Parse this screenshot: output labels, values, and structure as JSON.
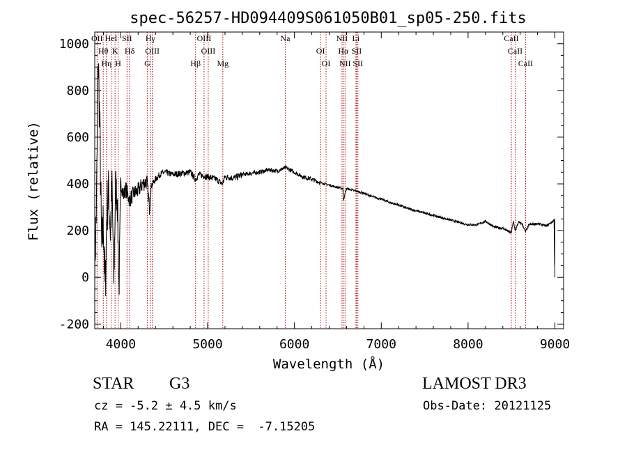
{
  "chart_data": {
    "type": "line",
    "title": "spec-56257-HD094409S061050B01_sp05-250.fits",
    "xlabel": "Wavelength (Å)",
    "ylabel": "Flux (relative)",
    "xlim": [
      3700,
      9100
    ],
    "ylim": [
      -220,
      1050
    ],
    "xticks": [
      4000,
      5000,
      6000,
      7000,
      8000,
      9000
    ],
    "yticks": [
      -200,
      0,
      200,
      400,
      600,
      800,
      1000
    ],
    "line_color": "#000000",
    "marker_color": "#b00000",
    "series": [
      {
        "name": "flux",
        "x": [
          3700,
          3720,
          3740,
          3760,
          3780,
          3800,
          3820,
          3840,
          3860,
          3880,
          3900,
          3920,
          3940,
          3960,
          3980,
          4000,
          4030,
          4060,
          4100,
          4150,
          4200,
          4250,
          4300,
          4330,
          4350,
          4400,
          4450,
          4500,
          4600,
          4700,
          4800,
          4860,
          4900,
          5000,
          5100,
          5170,
          5200,
          5300,
          5400,
          5500,
          5600,
          5700,
          5800,
          5900,
          6000,
          6100,
          6200,
          6300,
          6400,
          6500,
          6560,
          6563,
          6600,
          6700,
          6800,
          6900,
          7000,
          7100,
          7200,
          7300,
          7400,
          7500,
          7600,
          7700,
          7800,
          7900,
          8000,
          8100,
          8200,
          8300,
          8400,
          8498,
          8520,
          8542,
          8580,
          8620,
          8662,
          8700,
          8800,
          8900,
          8980,
          8990,
          9000
        ],
        "y": [
          50,
          300,
          950,
          600,
          100,
          250,
          -80,
          300,
          350,
          200,
          380,
          -30,
          400,
          330,
          -60,
          410,
          350,
          380,
          330,
          360,
          370,
          400,
          410,
          300,
          390,
          420,
          440,
          450,
          440,
          445,
          450,
          420,
          440,
          430,
          420,
          400,
          430,
          425,
          440,
          445,
          450,
          460,
          455,
          470,
          450,
          430,
          420,
          405,
          395,
          385,
          380,
          330,
          380,
          370,
          360,
          345,
          335,
          320,
          310,
          295,
          285,
          275,
          265,
          255,
          245,
          235,
          225,
          225,
          240,
          215,
          210,
          190,
          240,
          200,
          235,
          230,
          195,
          225,
          230,
          220,
          240,
          250,
          0
        ]
      }
    ],
    "spectral_lines": [
      {
        "label": "Hθ",
        "wavelength": 3798
      },
      {
        "label": "OII",
        "wavelength": 3727
      },
      {
        "label": "Hη",
        "wavelength": 3835
      },
      {
        "label": "HeI",
        "wavelength": 3889
      },
      {
        "label": "K",
        "wavelength": 3934
      },
      {
        "label": "H",
        "wavelength": 3969
      },
      {
        "label": "SII",
        "wavelength": 4072
      },
      {
        "label": "Hδ",
        "wavelength": 4102
      },
      {
        "label": "G",
        "wavelength": 4305
      },
      {
        "label": "Hγ",
        "wavelength": 4341
      },
      {
        "label": "OIII",
        "wavelength": 4363
      },
      {
        "label": "Hβ",
        "wavelength": 4861
      },
      {
        "label": "OIII",
        "wavelength": 4959
      },
      {
        "label": "OIII",
        "wavelength": 5007
      },
      {
        "label": "Mg",
        "wavelength": 5175
      },
      {
        "label": "Na",
        "wavelength": 5894
      },
      {
        "label": "OI",
        "wavelength": 6300
      },
      {
        "label": "OI",
        "wavelength": 6364
      },
      {
        "label": "NII",
        "wavelength": 6548
      },
      {
        "label": "Hα",
        "wavelength": 6563
      },
      {
        "label": "NII",
        "wavelength": 6583
      },
      {
        "label": "Li",
        "wavelength": 6708
      },
      {
        "label": "SII",
        "wavelength": 6716
      },
      {
        "label": "SII",
        "wavelength": 6731
      },
      {
        "label": "CaII",
        "wavelength": 8498
      },
      {
        "label": "CaII",
        "wavelength": 8542
      },
      {
        "label": "CaII",
        "wavelength": 8662
      }
    ]
  },
  "info": {
    "class": "STAR",
    "subclass": "G3",
    "survey": "LAMOST DR3",
    "cz": "cz = -5.2 ± 4.5 km/s",
    "obs_date": "Obs-Date: 20121125",
    "coords": "RA = 145.22111, DEC =  -7.15205"
  }
}
